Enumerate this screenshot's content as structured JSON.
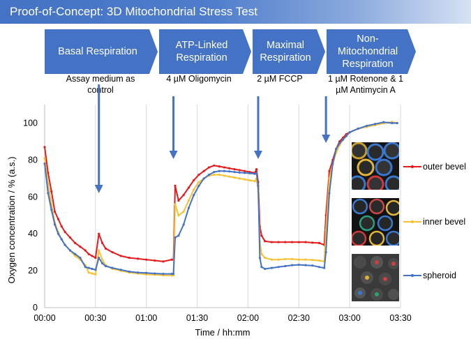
{
  "header": {
    "title": "Proof-of-Concept: 3D Mitochondrial Stress Test"
  },
  "phases": [
    {
      "label": "Basal Respiration"
    },
    {
      "label": "ATP-Linked Respiration"
    },
    {
      "label": "Maximal Respiration"
    },
    {
      "label": "Non-Mitochondrial Respiration"
    }
  ],
  "treatments": [
    {
      "label": "Assay medium as control",
      "time_min": 32
    },
    {
      "label": "4 µM Oligomycin",
      "time_min": 76
    },
    {
      "label": "2 µM FCCP",
      "time_min": 126
    },
    {
      "label": "1 µM Rotenone & 1 µM Antimycin A",
      "time_min": 166
    }
  ],
  "colors": {
    "outer": "#e41a1c",
    "inner": "#f6c233",
    "spheroid": "#4472c4",
    "arrow": "#4472c4",
    "phase": "#4472c4"
  },
  "chart_data": {
    "type": "line",
    "title": "",
    "xlabel": "Time / hh:mm",
    "ylabel": "Oxygen concentration / % (a.s.)",
    "xlim": [
      0,
      210
    ],
    "ylim": [
      0,
      110
    ],
    "xticks": [
      0,
      30,
      60,
      90,
      120,
      150,
      180,
      210
    ],
    "xtick_labels": [
      "00:00",
      "00:30",
      "01:00",
      "01:30",
      "02:00",
      "02:30",
      "03:00",
      "03:30"
    ],
    "yticks": [
      0,
      20,
      40,
      60,
      80,
      100
    ],
    "ytick_labels": [
      "0",
      "20",
      "40",
      "60",
      "80",
      "100"
    ],
    "grid": "vertical",
    "legend": "right",
    "series": [
      {
        "name": "outer bevel",
        "color": "#e41a1c",
        "x": [
          0,
          2,
          4,
          6,
          8,
          10,
          12,
          15,
          18,
          21,
          24,
          26,
          28,
          30,
          32,
          34,
          36,
          40,
          45,
          50,
          55,
          60,
          65,
          70,
          75,
          76,
          77,
          79,
          82,
          85,
          88,
          91,
          94,
          97,
          100,
          103,
          106,
          109,
          112,
          115,
          118,
          121,
          124,
          125,
          126,
          127,
          128,
          130,
          134,
          138,
          142,
          146,
          150,
          154,
          158,
          162,
          165,
          166,
          168,
          170,
          172,
          174,
          176,
          178,
          180,
          185,
          190,
          195,
          200,
          205,
          208
        ],
        "y": [
          87,
          73,
          63,
          52,
          48,
          44,
          41,
          38,
          35,
          33,
          31,
          29,
          28,
          27,
          40,
          35,
          32,
          30,
          28,
          27,
          26.5,
          26,
          25.5,
          25,
          26,
          26,
          66,
          58,
          61,
          65,
          69,
          72,
          74,
          76,
          77,
          76.5,
          76,
          75.5,
          75,
          74.5,
          74,
          73.5,
          73,
          75,
          68,
          44,
          39,
          36,
          35.5,
          35.5,
          35.5,
          35.5,
          35.5,
          35.5,
          35.2,
          35,
          34,
          50,
          74,
          80,
          86,
          90,
          92,
          94,
          95,
          97,
          98,
          99,
          100,
          100.5,
          100
        ]
      },
      {
        "name": "inner bevel",
        "color": "#f6c233",
        "x": [
          0,
          2,
          4,
          6,
          8,
          10,
          12,
          15,
          18,
          21,
          24,
          26,
          28,
          30,
          32,
          34,
          36,
          40,
          45,
          50,
          55,
          60,
          65,
          70,
          75,
          76,
          77,
          79,
          82,
          85,
          88,
          91,
          94,
          97,
          100,
          103,
          106,
          109,
          112,
          115,
          118,
          121,
          124,
          125,
          126,
          127,
          128,
          130,
          134,
          138,
          142,
          146,
          150,
          154,
          158,
          162,
          165,
          166,
          168,
          170,
          172,
          174,
          176,
          178,
          180,
          185,
          190,
          195,
          200,
          205,
          208
        ],
        "y": [
          81,
          67,
          56,
          46,
          41,
          37,
          34,
          31,
          28,
          26,
          23,
          19,
          18.5,
          18,
          31,
          26,
          23,
          21,
          20,
          19,
          18.5,
          18,
          17.8,
          17.5,
          17.5,
          17.5,
          56,
          50,
          52,
          58,
          64,
          68,
          70,
          71.5,
          72,
          72,
          71.5,
          71,
          70.5,
          70,
          69.5,
          69,
          68.5,
          70,
          63,
          36,
          29,
          27,
          26,
          26,
          26.3,
          26.3,
          26,
          26,
          25.8,
          25.5,
          25,
          42,
          70,
          78,
          84,
          88,
          91,
          93,
          95,
          97,
          98,
          99,
          100,
          100.5,
          100
        ]
      },
      {
        "name": "spheroid",
        "color": "#4472c4",
        "x": [
          0,
          2,
          4,
          6,
          8,
          10,
          12,
          15,
          18,
          21,
          24,
          26,
          28,
          30,
          32,
          34,
          36,
          40,
          45,
          50,
          55,
          60,
          65,
          70,
          75,
          76,
          77,
          79,
          82,
          85,
          88,
          91,
          94,
          97,
          100,
          103,
          106,
          109,
          112,
          115,
          118,
          121,
          124,
          125,
          126,
          127,
          128,
          130,
          134,
          138,
          142,
          146,
          150,
          154,
          158,
          162,
          165,
          166,
          168,
          170,
          172,
          174,
          176,
          178,
          180,
          185,
          190,
          195,
          200,
          205,
          208
        ],
        "y": [
          78,
          62,
          53,
          45,
          40,
          37,
          34,
          31,
          29,
          27,
          22,
          21.5,
          21,
          20.5,
          27,
          24,
          22.5,
          21.5,
          20.5,
          19.5,
          19,
          18.8,
          18.5,
          18.3,
          18.3,
          18.3,
          38,
          39,
          45,
          54,
          61,
          66,
          70,
          72,
          73.5,
          74,
          74,
          73.8,
          73.5,
          73.2,
          73,
          72.8,
          72.5,
          73,
          66,
          27,
          22,
          21,
          21.5,
          22,
          22.5,
          23,
          23.2,
          23,
          22.8,
          22,
          21.5,
          30,
          62,
          78,
          86,
          89,
          91,
          93,
          95,
          97,
          98.5,
          99.5,
          100.5,
          100,
          100
        ]
      }
    ]
  },
  "insets": [
    {
      "name": "outer-bevel-micrograph"
    },
    {
      "name": "inner-bevel-micrograph"
    },
    {
      "name": "spheroid-micrograph"
    }
  ]
}
